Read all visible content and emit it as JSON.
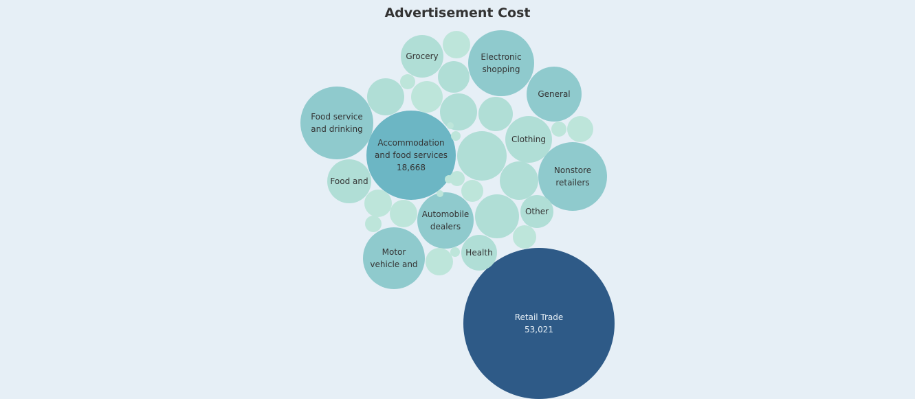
{
  "chart_data": {
    "type": "bubble",
    "title": "Advertisement Cost",
    "colors": {
      "background": "#e6eff6",
      "largest": "#2e5a87",
      "large": "#6cb6c4",
      "medium": "#8fcacd",
      "small": "#b0ded6",
      "smallest": "#bde5da",
      "dark_text": "#333333",
      "light_text": "#e6eff6"
    },
    "bubbles": [
      {
        "label": [
          "Retail Trade",
          "53,021"
        ],
        "value": 53021,
        "tone": "largest"
      },
      {
        "label": [
          "Accommodation",
          "and food services",
          "18,668"
        ],
        "value": 18668,
        "tone": "large"
      },
      {
        "label": [
          "Food service",
          "and drinking"
        ],
        "value": null,
        "tone": "medium"
      },
      {
        "label": [
          "Nonstore",
          "retailers"
        ],
        "value": null,
        "tone": "medium"
      },
      {
        "label": [
          "Electronic",
          "shopping"
        ],
        "value": null,
        "tone": "medium"
      },
      {
        "label": [
          "Motor",
          "vehicle and"
        ],
        "value": null,
        "tone": "medium"
      },
      {
        "label": [
          "Automobile",
          "dealers"
        ],
        "value": null,
        "tone": "medium"
      },
      {
        "label": [
          "General"
        ],
        "value": null,
        "tone": "medium"
      },
      {
        "label": [
          "Clothing"
        ],
        "value": null,
        "tone": "small"
      },
      {
        "label": [
          "Food and"
        ],
        "value": null,
        "tone": "small"
      },
      {
        "label": [
          "Grocery"
        ],
        "value": null,
        "tone": "small"
      },
      {
        "label": [
          "Health"
        ],
        "value": null,
        "tone": "small"
      },
      {
        "label": [
          "Other"
        ],
        "value": null,
        "tone": "small"
      },
      {
        "label": [],
        "value": null,
        "tone": "small"
      },
      {
        "label": [],
        "value": null,
        "tone": "small"
      },
      {
        "label": [],
        "value": null,
        "tone": "small"
      },
      {
        "label": [],
        "value": null,
        "tone": "small"
      },
      {
        "label": [],
        "value": null,
        "tone": "small"
      },
      {
        "label": [],
        "value": null,
        "tone": "small"
      },
      {
        "label": [],
        "value": null,
        "tone": "small"
      },
      {
        "label": [],
        "value": null,
        "tone": "smallest"
      },
      {
        "label": [],
        "value": null,
        "tone": "smallest"
      },
      {
        "label": [],
        "value": null,
        "tone": "smallest"
      },
      {
        "label": [],
        "value": null,
        "tone": "smallest"
      },
      {
        "label": [],
        "value": null,
        "tone": "smallest"
      },
      {
        "label": [],
        "value": null,
        "tone": "smallest"
      },
      {
        "label": [],
        "value": null,
        "tone": "smallest"
      },
      {
        "label": [],
        "value": null,
        "tone": "smallest"
      },
      {
        "label": [],
        "value": null,
        "tone": "smallest"
      },
      {
        "label": [],
        "value": null,
        "tone": "smallest"
      },
      {
        "label": [],
        "value": null,
        "tone": "smallest"
      },
      {
        "label": [],
        "value": null,
        "tone": "smallest"
      },
      {
        "label": [],
        "value": null,
        "tone": "smallest"
      },
      {
        "label": [],
        "value": null,
        "tone": "smallest"
      },
      {
        "label": [],
        "value": null,
        "tone": "smallest"
      },
      {
        "label": [],
        "value": null,
        "tone": "smallest"
      },
      {
        "label": [],
        "value": null,
        "tone": "smallest"
      }
    ]
  }
}
